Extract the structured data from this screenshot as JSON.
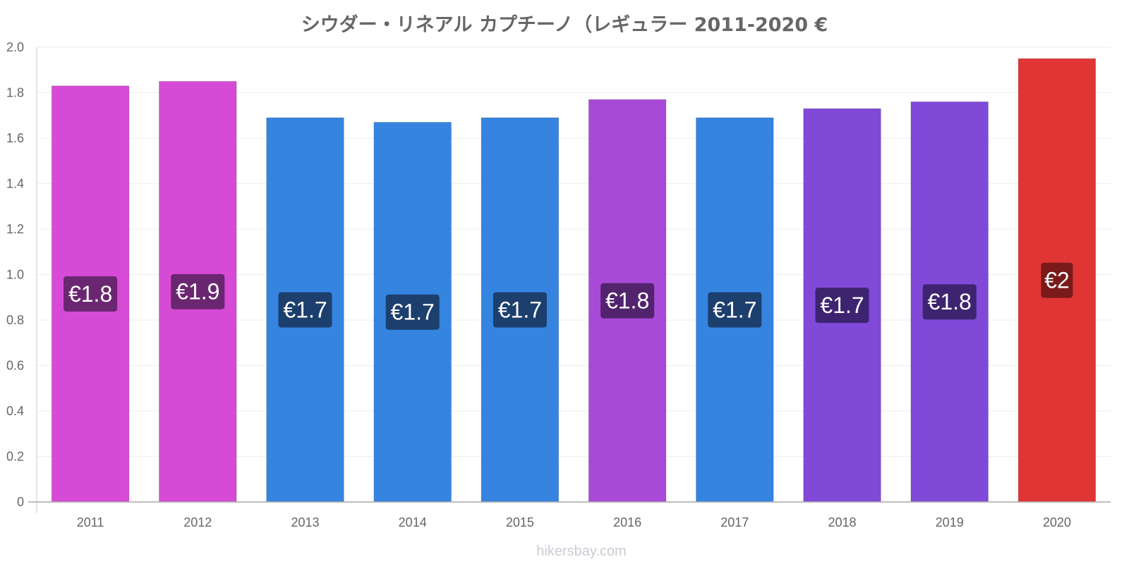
{
  "chart_data": {
    "type": "bar",
    "title": "シウダー・リネアル カプチーノ（レギュラー 2011-2020 €",
    "categories": [
      "2011",
      "2012",
      "2013",
      "2014",
      "2015",
      "2016",
      "2017",
      "2018",
      "2019",
      "2020"
    ],
    "values": [
      1.83,
      1.85,
      1.69,
      1.67,
      1.69,
      1.77,
      1.69,
      1.73,
      1.76,
      1.95
    ],
    "data_labels": [
      "€1.8",
      "€1.9",
      "€1.7",
      "€1.7",
      "€1.7",
      "€1.8",
      "€1.7",
      "€1.7",
      "€1.8",
      "€2"
    ],
    "bar_colors": [
      "#d64bd6",
      "#d64bd6",
      "#3584e0",
      "#3584e0",
      "#3584e0",
      "#a84ad8",
      "#3584e0",
      "#8049d8",
      "#8049d8",
      "#e03535"
    ],
    "label_bg_colors": [
      "#6a2670",
      "#6a2670",
      "#1c3f6e",
      "#1c3f6e",
      "#1c3f6e",
      "#52246d",
      "#1c3f6e",
      "#3e2470",
      "#3e2470",
      "#7a1a1a"
    ],
    "yticks": [
      "0",
      "0.2",
      "0.4",
      "0.6",
      "0.8",
      "1.0",
      "1.2",
      "1.4",
      "1.6",
      "1.8",
      "2.0"
    ],
    "ylim": [
      0,
      2.0
    ],
    "xlabel": "",
    "ylabel": "",
    "grid": true,
    "legend": "none"
  },
  "footer": "hikersbay.com"
}
